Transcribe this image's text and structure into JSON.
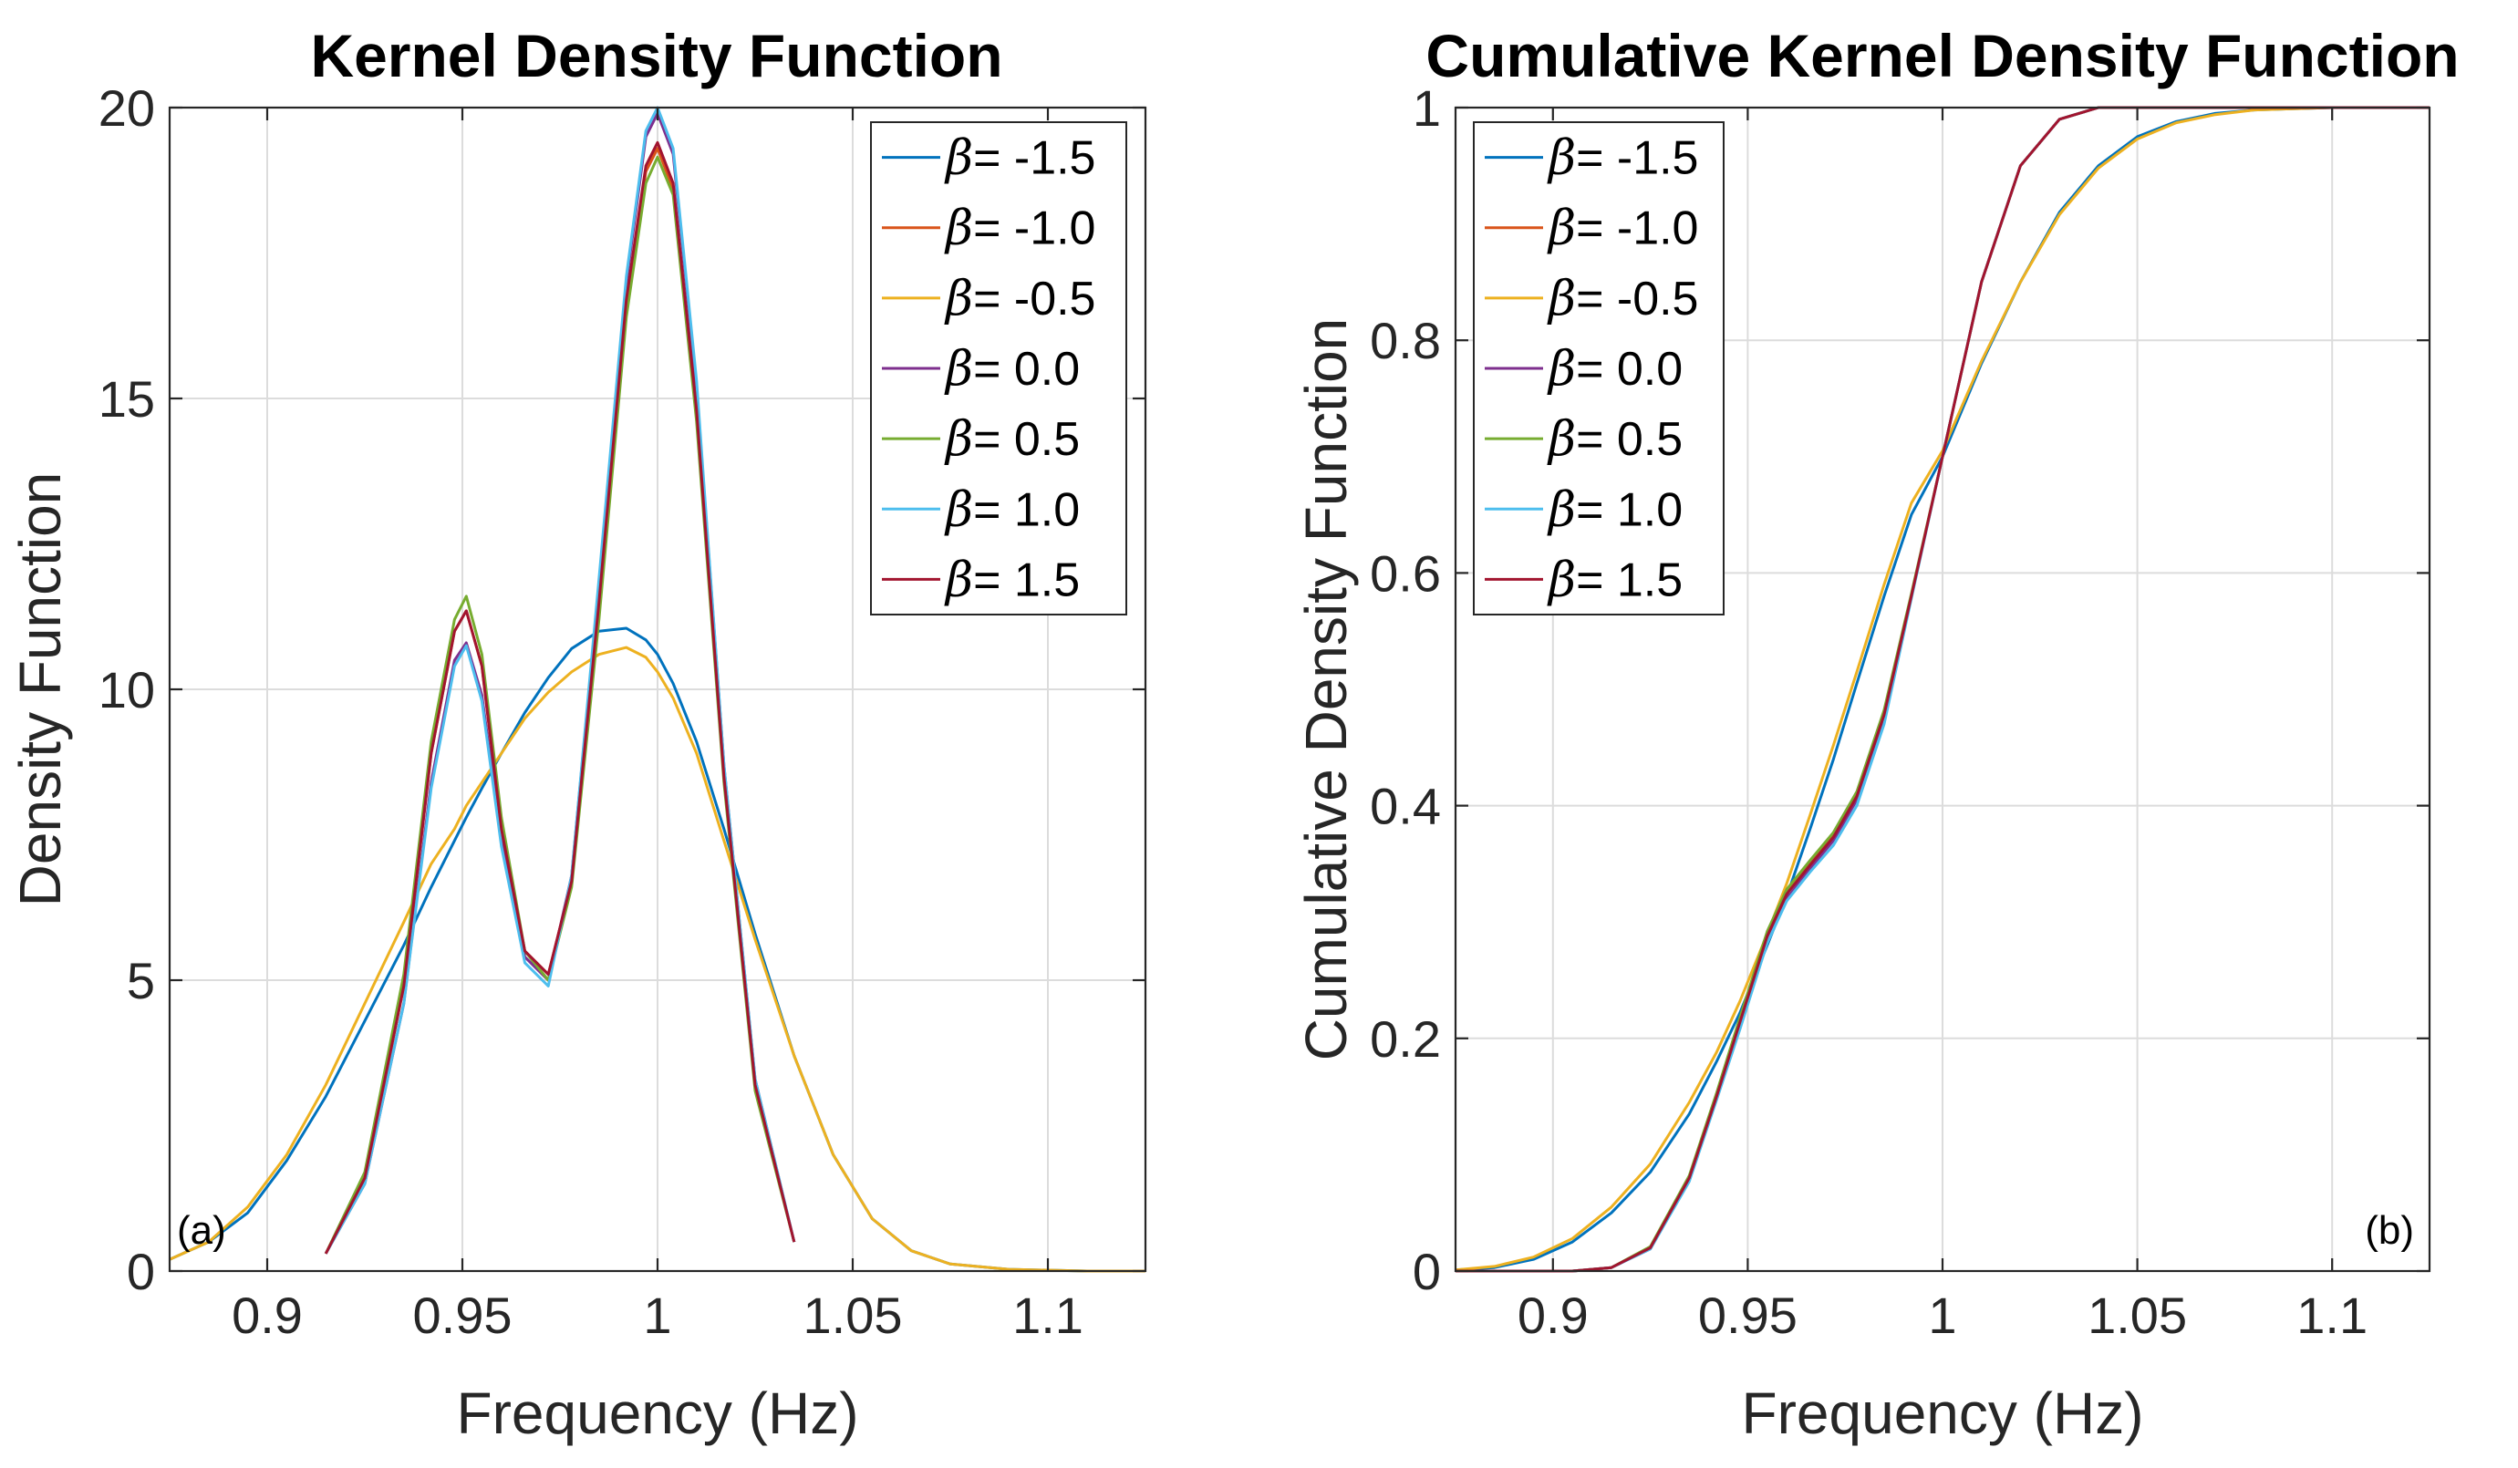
{
  "chart_data": [
    {
      "type": "line",
      "panel_tag": "(a)",
      "title": "Kernel Density Function",
      "xlabel": "Frequency (Hz)",
      "ylabel": "Density Function",
      "xlim": [
        0.875,
        1.125
      ],
      "ylim": [
        0,
        20
      ],
      "xticks": [
        0.9,
        0.95,
        1.0,
        1.05,
        1.1
      ],
      "xtick_labels": [
        "0.9",
        "0.95",
        "1",
        "1.05",
        "1.1"
      ],
      "yticks": [
        0,
        5,
        10,
        15,
        20
      ],
      "ytick_labels": [
        "0",
        "5",
        "10",
        "15",
        "20"
      ],
      "grid": true,
      "legend_position": "top-right",
      "x": [
        0.875,
        0.885,
        0.895,
        0.905,
        0.915,
        0.925,
        0.935,
        0.942,
        0.948,
        0.951,
        0.955,
        0.96,
        0.966,
        0.972,
        0.978,
        0.985,
        0.992,
        0.997,
        1.0,
        1.004,
        1.01,
        1.017,
        1.025,
        1.035,
        1.045,
        1.055,
        1.065,
        1.075,
        1.09,
        1.11,
        1.125
      ],
      "series": [
        {
          "name": "β= -1.5",
          "legend_label": "= -1.5",
          "color": "#0072BD",
          "values": [
            0.2,
            0.5,
            1.0,
            1.9,
            3.0,
            4.3,
            5.6,
            6.6,
            7.4,
            7.8,
            8.3,
            8.9,
            9.6,
            10.2,
            10.7,
            11.0,
            11.05,
            10.85,
            10.6,
            10.1,
            9.1,
            7.6,
            5.8,
            3.7,
            2.0,
            0.9,
            0.35,
            0.12,
            0.03,
            0.0,
            0.0
          ]
        },
        {
          "name": "β= -1.0",
          "legend_label": "= -1.0",
          "color": "#D95319",
          "values": [
            null,
            null,
            null,
            null,
            0.3,
            1.6,
            4.9,
            8.9,
            11.0,
            11.35,
            10.4,
            7.6,
            5.5,
            5.1,
            6.7,
            11.5,
            16.6,
            18.9,
            19.3,
            18.6,
            14.8,
            8.5,
            3.2,
            0.5,
            null,
            null,
            null,
            null,
            null,
            null,
            null
          ]
        },
        {
          "name": "β= -0.5",
          "legend_label": "= -0.5",
          "color": "#EDB120",
          "values": [
            0.2,
            0.5,
            1.1,
            2.0,
            3.2,
            4.6,
            6.0,
            7.0,
            7.6,
            8.0,
            8.4,
            8.9,
            9.5,
            9.95,
            10.3,
            10.6,
            10.72,
            10.55,
            10.3,
            9.85,
            8.9,
            7.4,
            5.7,
            3.7,
            2.0,
            0.9,
            0.35,
            0.12,
            0.03,
            0.0,
            0.0
          ]
        },
        {
          "name": "β= 0.0",
          "legend_label": "= 0.0",
          "color": "#7E2F8E",
          "values": [
            null,
            null,
            null,
            null,
            0.3,
            1.5,
            4.6,
            8.4,
            10.5,
            10.8,
            9.9,
            7.4,
            5.4,
            5.0,
            6.8,
            11.8,
            17.0,
            19.5,
            19.9,
            19.2,
            15.2,
            8.7,
            3.3,
            0.5,
            null,
            null,
            null,
            null,
            null,
            null,
            null
          ]
        },
        {
          "name": "β= 0.5",
          "legend_label": "= 0.5",
          "color": "#77AC30",
          "values": [
            null,
            null,
            null,
            null,
            0.3,
            1.7,
            5.1,
            9.1,
            11.2,
            11.6,
            10.6,
            7.8,
            5.5,
            5.0,
            6.6,
            11.2,
            16.4,
            18.7,
            19.15,
            18.5,
            14.6,
            8.4,
            3.1,
            0.5,
            null,
            null,
            null,
            null,
            null,
            null,
            null
          ]
        },
        {
          "name": "β= 1.0",
          "legend_label": "= 1.0",
          "color": "#4DBEEE",
          "values": [
            null,
            null,
            null,
            null,
            0.3,
            1.5,
            4.6,
            8.3,
            10.4,
            10.75,
            9.8,
            7.3,
            5.3,
            4.9,
            6.8,
            11.9,
            17.1,
            19.6,
            20.0,
            19.3,
            15.3,
            8.7,
            3.3,
            0.5,
            null,
            null,
            null,
            null,
            null,
            null,
            null
          ]
        },
        {
          "name": "β= 1.5",
          "legend_label": "= 1.5",
          "color": "#A2142F",
          "values": [
            null,
            null,
            null,
            null,
            0.3,
            1.6,
            4.9,
            8.9,
            11.0,
            11.35,
            10.4,
            7.6,
            5.5,
            5.1,
            6.7,
            11.5,
            16.7,
            19.0,
            19.4,
            18.7,
            14.8,
            8.5,
            3.2,
            0.5,
            null,
            null,
            null,
            null,
            null,
            null,
            null
          ]
        }
      ]
    },
    {
      "type": "line",
      "panel_tag": "(b)",
      "title": "Cumulative Kernel Density Function",
      "xlabel": "Frequency (Hz)",
      "ylabel": "Cumulative Density Function",
      "xlim": [
        0.875,
        1.125
      ],
      "ylim": [
        0,
        1
      ],
      "xticks": [
        0.9,
        0.95,
        1.0,
        1.05,
        1.1
      ],
      "xtick_labels": [
        "0.9",
        "0.95",
        "1",
        "1.05",
        "1.1"
      ],
      "yticks": [
        0,
        0.2,
        0.4,
        0.6,
        0.8,
        1.0
      ],
      "ytick_labels": [
        "0",
        "0.2",
        "0.4",
        "0.6",
        "0.8",
        "1"
      ],
      "grid": true,
      "legend_position": "top-left",
      "x": [
        0.875,
        0.885,
        0.895,
        0.905,
        0.915,
        0.925,
        0.935,
        0.942,
        0.948,
        0.955,
        0.96,
        0.966,
        0.972,
        0.978,
        0.985,
        0.992,
        1.0,
        1.01,
        1.02,
        1.03,
        1.04,
        1.05,
        1.06,
        1.07,
        1.08,
        1.09,
        1.1,
        1.125
      ],
      "series": [
        {
          "name": "β= -1.5",
          "legend_label": "= -1.5",
          "color": "#0072BD",
          "values": [
            0.001,
            0.003,
            0.01,
            0.025,
            0.05,
            0.085,
            0.135,
            0.18,
            0.222,
            0.28,
            0.322,
            0.38,
            0.44,
            0.505,
            0.58,
            0.65,
            0.7,
            0.78,
            0.85,
            0.91,
            0.95,
            0.975,
            0.988,
            0.995,
            0.998,
            0.999,
            1.0,
            1.0
          ]
        },
        {
          "name": "β= -1.0",
          "legend_label": "= -1.0",
          "color": "#D95319",
          "values": [
            0.0,
            0.0,
            0.0,
            0.0,
            0.003,
            0.02,
            0.08,
            0.15,
            0.215,
            0.29,
            0.325,
            0.35,
            0.375,
            0.41,
            0.48,
            0.58,
            0.7,
            0.85,
            0.95,
            0.99,
            1.0,
            1.0,
            1.0,
            1.0,
            1.0,
            1.0,
            1.0,
            1.0
          ]
        },
        {
          "name": "β= -0.5",
          "legend_label": "= -0.5",
          "color": "#EDB120",
          "values": [
            0.001,
            0.004,
            0.012,
            0.028,
            0.055,
            0.092,
            0.145,
            0.188,
            0.232,
            0.29,
            0.333,
            0.392,
            0.452,
            0.515,
            0.59,
            0.66,
            0.705,
            0.782,
            0.85,
            0.908,
            0.948,
            0.973,
            0.987,
            0.994,
            0.998,
            0.999,
            1.0,
            1.0
          ]
        },
        {
          "name": "β= 0.0",
          "legend_label": "= 0.0",
          "color": "#7E2F8E",
          "values": [
            0.0,
            0.0,
            0.0,
            0.0,
            0.003,
            0.019,
            0.078,
            0.148,
            0.21,
            0.285,
            0.32,
            0.346,
            0.37,
            0.405,
            0.475,
            0.58,
            0.7,
            0.85,
            0.95,
            0.99,
            1.0,
            1.0,
            1.0,
            1.0,
            1.0,
            1.0,
            1.0,
            1.0
          ]
        },
        {
          "name": "β= 0.5",
          "legend_label": "= 0.5",
          "color": "#77AC30",
          "values": [
            0.0,
            0.0,
            0.0,
            0.0,
            0.003,
            0.021,
            0.082,
            0.153,
            0.218,
            0.292,
            0.328,
            0.353,
            0.377,
            0.412,
            0.482,
            0.582,
            0.7,
            0.85,
            0.95,
            0.99,
            1.0,
            1.0,
            1.0,
            1.0,
            1.0,
            1.0,
            1.0,
            1.0
          ]
        },
        {
          "name": "β= 1.0",
          "legend_label": "= 1.0",
          "color": "#4DBEEE",
          "values": [
            0.0,
            0.0,
            0.0,
            0.0,
            0.003,
            0.019,
            0.077,
            0.147,
            0.208,
            0.282,
            0.318,
            0.343,
            0.366,
            0.4,
            0.47,
            0.578,
            0.7,
            0.85,
            0.95,
            0.99,
            1.0,
            1.0,
            1.0,
            1.0,
            1.0,
            1.0,
            1.0,
            1.0
          ]
        },
        {
          "name": "β= 1.5",
          "legend_label": "= 1.5",
          "color": "#A2142F",
          "values": [
            0.0,
            0.0,
            0.0,
            0.0,
            0.003,
            0.02,
            0.08,
            0.15,
            0.214,
            0.288,
            0.324,
            0.349,
            0.373,
            0.408,
            0.478,
            0.58,
            0.7,
            0.85,
            0.95,
            0.99,
            1.0,
            1.0,
            1.0,
            1.0,
            1.0,
            1.0,
            1.0,
            1.0
          ]
        }
      ]
    }
  ]
}
